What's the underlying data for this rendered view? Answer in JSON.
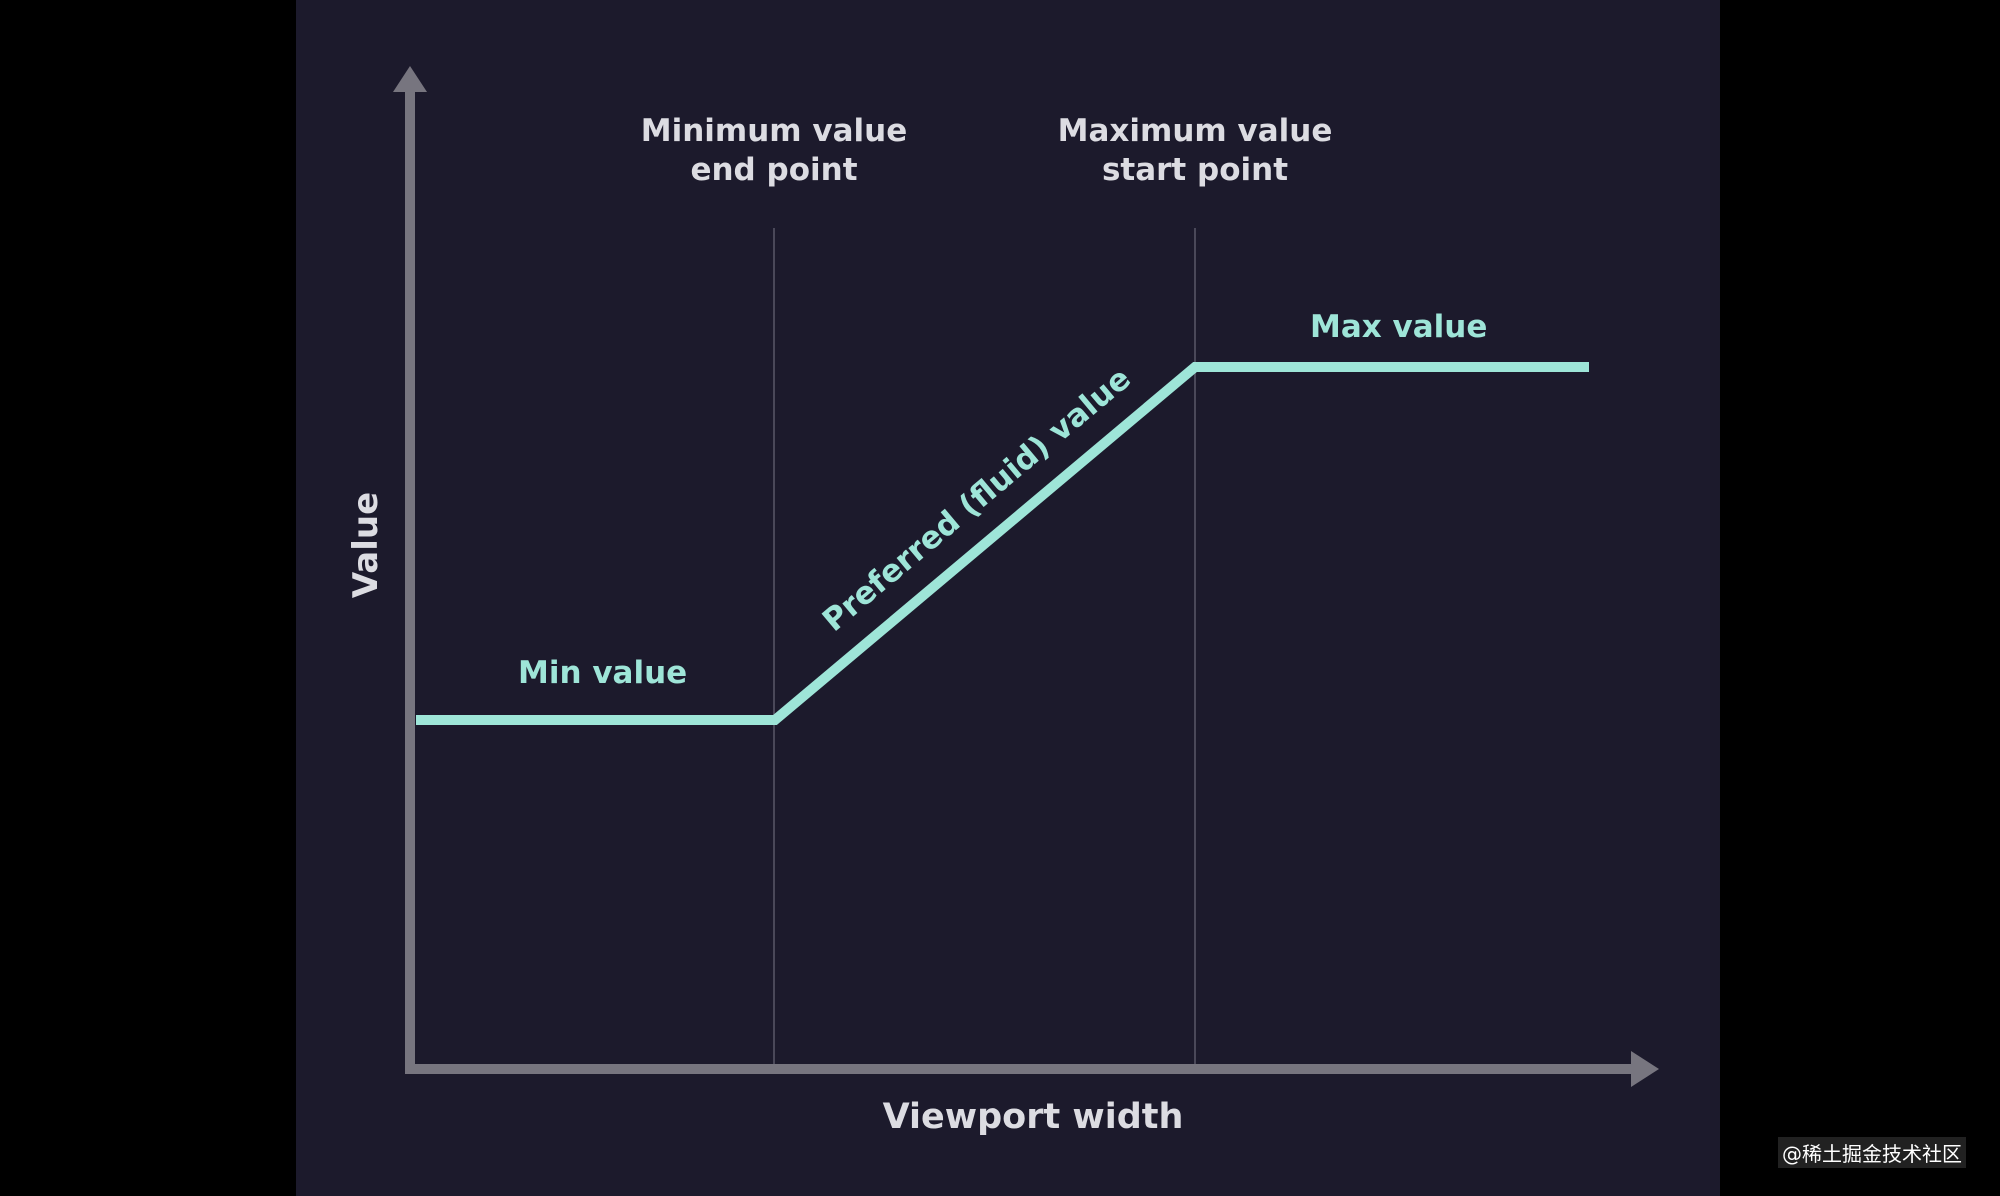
{
  "diagram": {
    "axes": {
      "y_label": "Value",
      "x_label": "Viewport width"
    },
    "markers": [
      {
        "lines": [
          "Minimum value",
          "end point"
        ]
      },
      {
        "lines": [
          "Maximum value",
          "start point"
        ]
      }
    ],
    "segments": {
      "min": "Min value",
      "preferred": "Preferred (fluid) value",
      "max": "Max value"
    },
    "colors": {
      "background": "#1c1a2c",
      "accent": "#9ee5d8",
      "axis": "#77757f",
      "guide": "#4a4859",
      "text": "#dcdce2"
    }
  },
  "watermark": "@稀土掘金技术社区"
}
